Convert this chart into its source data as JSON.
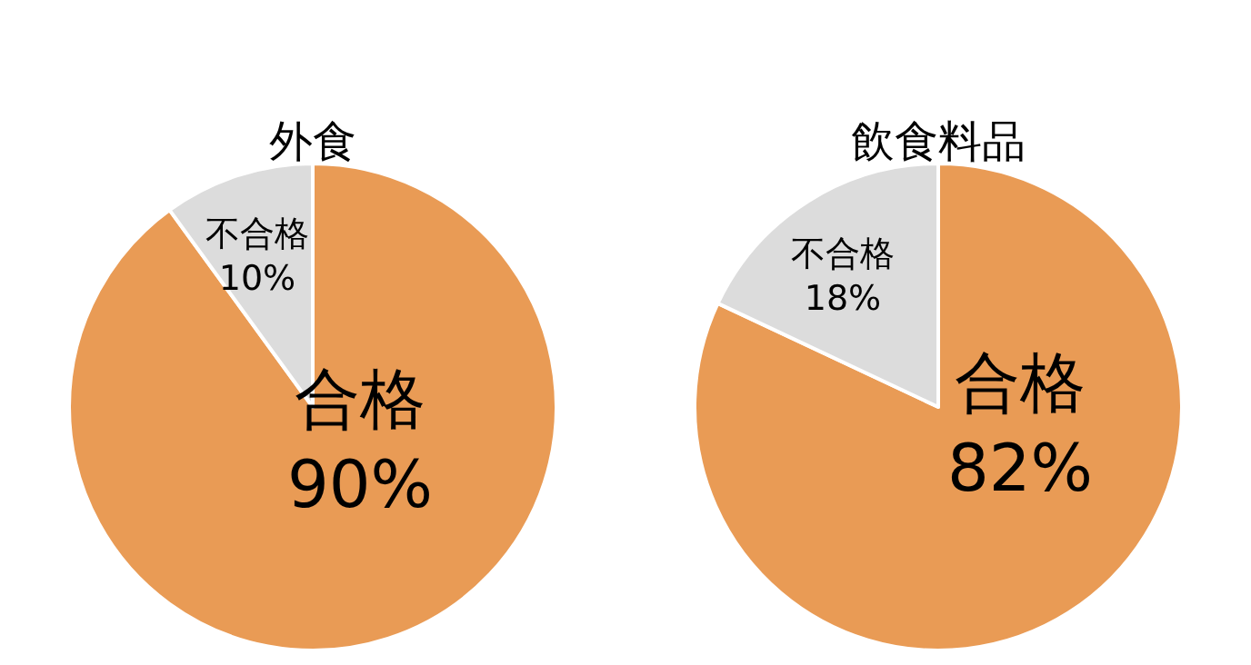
{
  "chart_data": [
    {
      "type": "pie",
      "title": "外食",
      "categories": [
        "合格",
        "不合格"
      ],
      "values": [
        90,
        10
      ],
      "value_labels": [
        "90%",
        "10%"
      ],
      "colors": [
        "#e99b55",
        "#dcdcdc"
      ]
    },
    {
      "type": "pie",
      "title": "飲食料品",
      "categories": [
        "合格",
        "不合格"
      ],
      "values": [
        82,
        18
      ],
      "value_labels": [
        "82%",
        "18%"
      ],
      "colors": [
        "#e99b55",
        "#dcdcdc"
      ]
    }
  ]
}
